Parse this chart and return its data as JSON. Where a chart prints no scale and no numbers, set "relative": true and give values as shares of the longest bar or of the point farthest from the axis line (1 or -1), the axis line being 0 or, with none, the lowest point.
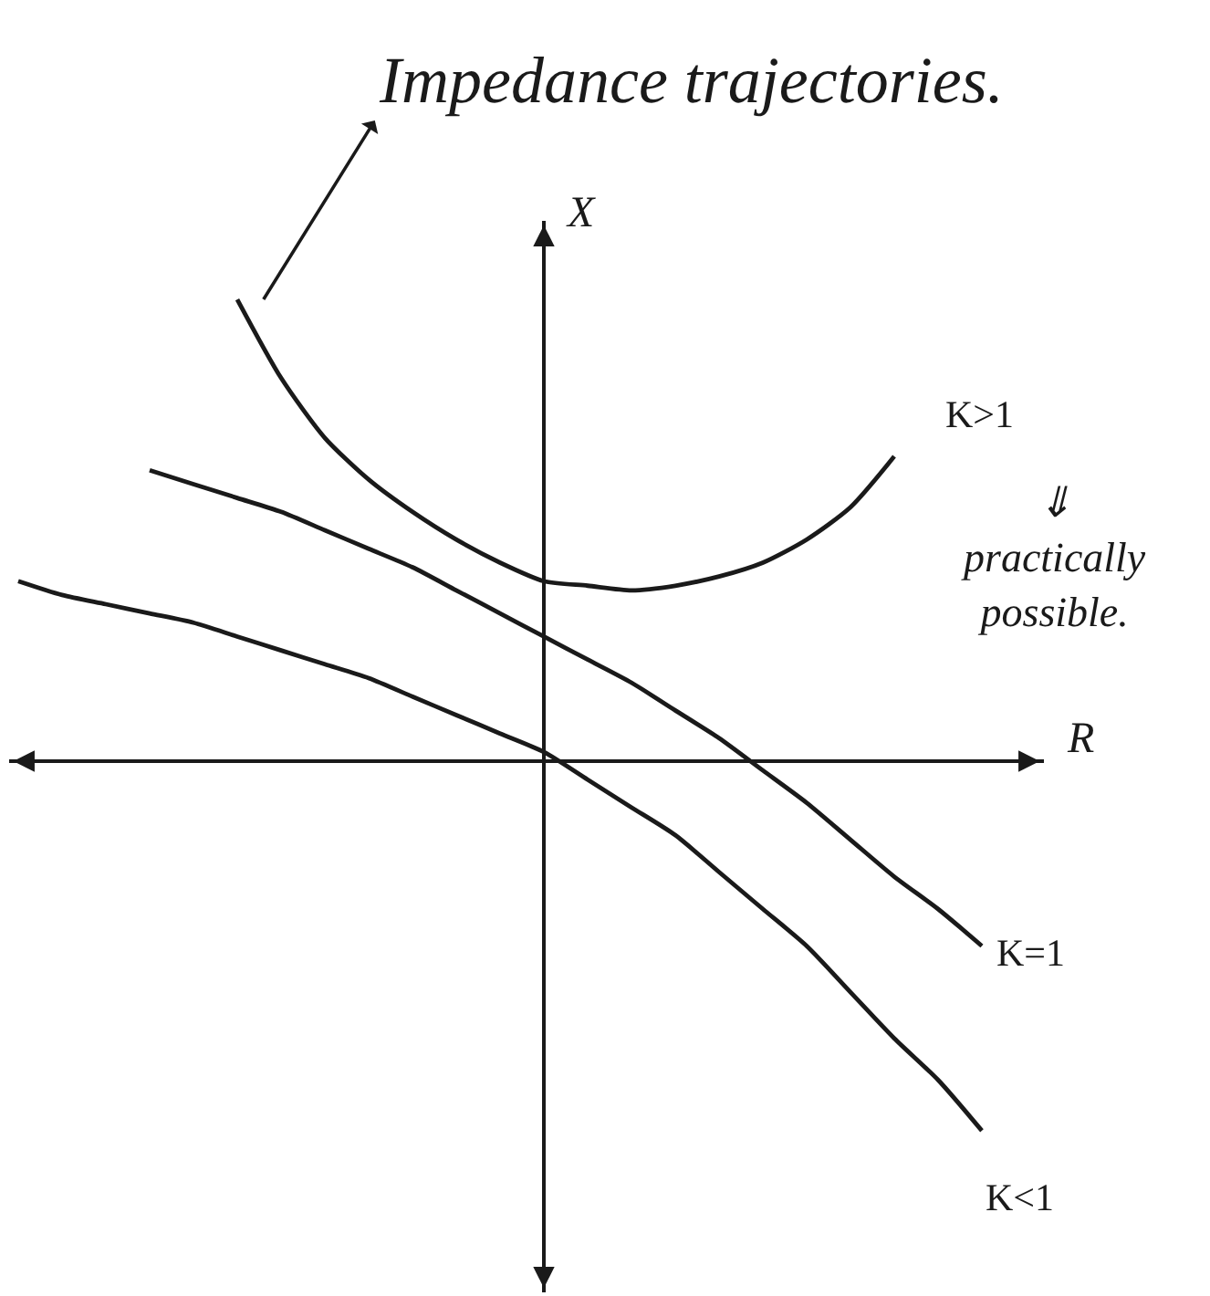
{
  "chart_data": {
    "type": "line",
    "relative": true,
    "xlabel": "R",
    "ylabel": "X",
    "marker": "none",
    "line_style": "solid",
    "categories": [
      null,
      null,
      null,
      null,
      null,
      null,
      null,
      null,
      null,
      null,
      null,
      null,
      null,
      null,
      null,
      null,
      null,
      null,
      null,
      null,
      null,
      null,
      null,
      null
    ],
    "series": [
      {
        "name": "K>1",
        "color": "#1a1a1a",
        "values": [
          null,
          null,
          null,
          null,
          null,
          1.0,
          0.83,
          0.7,
          0.61,
          0.54,
          0.48,
          0.43,
          0.39,
          0.38,
          0.37,
          0.38,
          0.4,
          0.43,
          0.48,
          0.55,
          0.66,
          null,
          null,
          null
        ]
      },
      {
        "name": "K=1",
        "color": "#1a1a1a",
        "values": [
          null,
          null,
          null,
          0.63,
          0.6,
          0.57,
          0.54,
          0.5,
          0.46,
          0.42,
          0.37,
          0.32,
          0.27,
          0.22,
          0.17,
          0.11,
          0.05,
          -0.02,
          -0.09,
          -0.17,
          -0.25,
          -0.32,
          -0.4,
          null
        ]
      },
      {
        "name": "K<1",
        "color": "#1a1a1a",
        "values": [
          0.39,
          0.36,
          0.34,
          0.32,
          0.3,
          0.27,
          0.24,
          0.21,
          0.18,
          0.14,
          0.1,
          0.06,
          0.02,
          -0.04,
          -0.1,
          -0.16,
          -0.24,
          -0.32,
          -0.4,
          -0.5,
          -0.6,
          -0.69,
          -0.8,
          null
        ]
      }
    ],
    "annotations": [
      "Impedance trajectories.",
      "⇓ practically possible."
    ]
  }
}
